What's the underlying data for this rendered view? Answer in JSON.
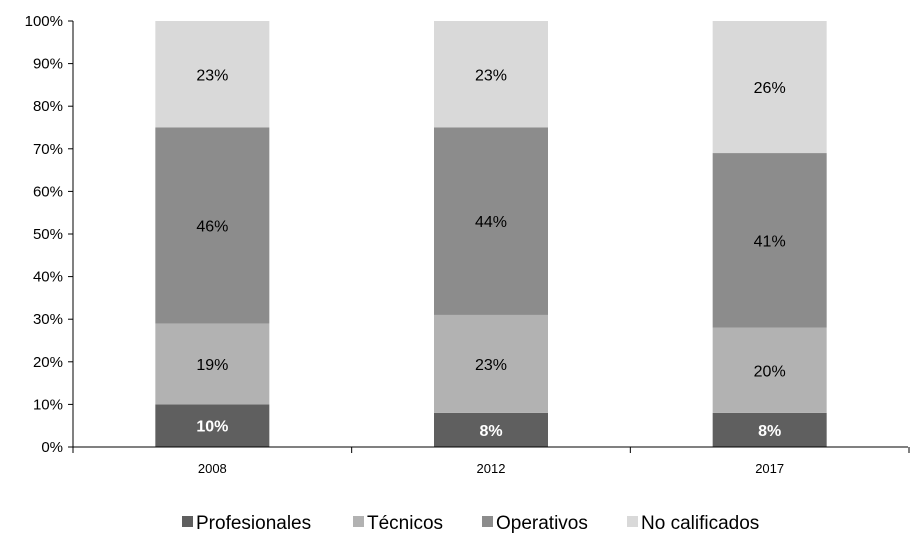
{
  "chart_data": {
    "type": "bar",
    "stacked": true,
    "percent_stacked": true,
    "categories": [
      "2008",
      "2012",
      "2017"
    ],
    "series": [
      {
        "name": "Profesionales",
        "color": "#5f5f5f",
        "values": [
          10,
          8,
          8
        ],
        "labels": [
          "10%",
          "8%",
          "8%"
        ],
        "label_style": "bold-white"
      },
      {
        "name": "Técnicos",
        "color": "#b2b2b2",
        "values": [
          19,
          23,
          20
        ],
        "labels": [
          "19%",
          "23%",
          "20%"
        ]
      },
      {
        "name": "Operativos",
        "color": "#8c8c8c",
        "values": [
          46,
          44,
          41
        ],
        "labels": [
          "46%",
          "44%",
          "41%"
        ]
      },
      {
        "name": "No calificados",
        "color": "#d9d9d9",
        "values": [
          23,
          23,
          26
        ],
        "labels": [
          "23%",
          "23%",
          "26%"
        ]
      }
    ],
    "y_ticks": [
      "0%",
      "10%",
      "20%",
      "30%",
      "40%",
      "50%",
      "60%",
      "70%",
      "80%",
      "90%",
      "100%"
    ],
    "ylim": [
      0,
      100
    ],
    "title": "",
    "xlabel": "",
    "ylabel": "",
    "grid": false,
    "legend": "bottom"
  }
}
